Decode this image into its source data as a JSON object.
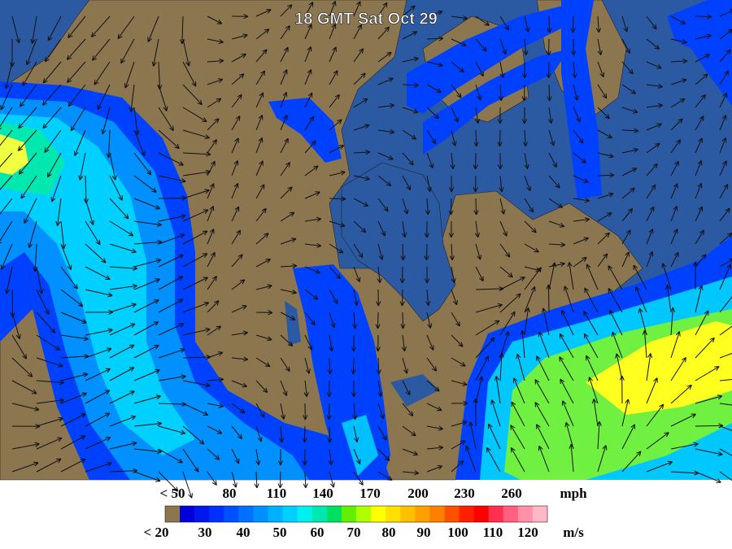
{
  "title": "18 GMT Sat Oct 29",
  "legend": {
    "mph_labels": [
      "< 50",
      "80",
      "110",
      "140",
      "170",
      "200",
      "230",
      "260"
    ],
    "mph_unit": "mph",
    "ms_labels": [
      "< 20",
      "30",
      "40",
      "50",
      "60",
      "70",
      "80",
      "90",
      "100",
      "110",
      "120"
    ],
    "ms_unit": "m/s",
    "colors": [
      "#8c7650",
      "#0000d8",
      "#0018f0",
      "#0030ff",
      "#0050ff",
      "#0070ff",
      "#0090ff",
      "#00b0ff",
      "#00d0ff",
      "#00f0f0",
      "#00e8b0",
      "#00e060",
      "#60f000",
      "#b0ff00",
      "#ffff00",
      "#ffe000",
      "#ffc000",
      "#ffa000",
      "#ff8000",
      "#ff5000",
      "#ff2000",
      "#ff0000",
      "#ff3050",
      "#ff6080",
      "#ff90a8",
      "#ffb8c8"
    ]
  }
}
